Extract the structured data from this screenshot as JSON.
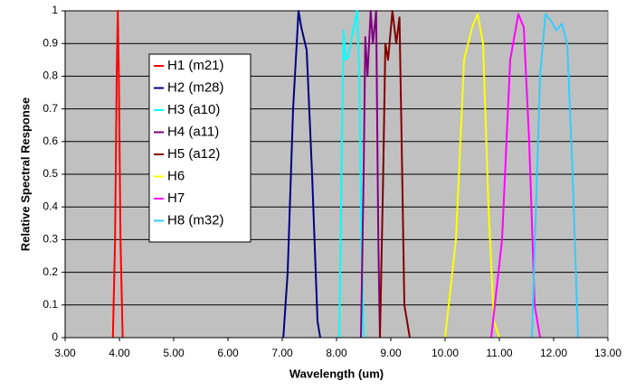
{
  "chart_data": {
    "type": "line",
    "xlabel": "Wavelength (um)",
    "ylabel": "Relative Spectral Response",
    "xlim": [
      3,
      13
    ],
    "ylim": [
      0,
      1
    ],
    "xticks": [
      {
        "value": 3,
        "label": "3.00"
      },
      {
        "value": 4,
        "label": "4.00"
      },
      {
        "value": 5,
        "label": "5.00"
      },
      {
        "value": 6,
        "label": "6.00"
      },
      {
        "value": 7,
        "label": "7.00"
      },
      {
        "value": 8,
        "label": "8.00"
      },
      {
        "value": 9,
        "label": "9.00"
      },
      {
        "value": 10,
        "label": "10.00"
      },
      {
        "value": 11,
        "label": "11.00"
      },
      {
        "value": 12,
        "label": "12.00"
      },
      {
        "value": 13,
        "label": "13.00"
      }
    ],
    "yticks": [
      0,
      0.1,
      0.2,
      0.3,
      0.4,
      0.5,
      0.6,
      0.7,
      0.8,
      0.9,
      1
    ],
    "grid": true,
    "background": "#c0c0c0",
    "series": [
      {
        "name": "H1 (m21)",
        "color": "#ff0000",
        "x": [
          3.88,
          3.92,
          3.95,
          3.97,
          3.99,
          4.02,
          4.06
        ],
        "values": [
          0,
          0.3,
          0.8,
          1,
          0.8,
          0.3,
          0
        ]
      },
      {
        "name": "H2 (m28)",
        "color": "#000080",
        "x": [
          7.02,
          7.1,
          7.2,
          7.3,
          7.35,
          7.45,
          7.55,
          7.65,
          7.7
        ],
        "values": [
          0,
          0.2,
          0.7,
          1,
          0.95,
          0.88,
          0.5,
          0.05,
          0
        ]
      },
      {
        "name": "H3 (a10)",
        "color": "#00ffff",
        "x": [
          8.05,
          8.1,
          8.13,
          8.17,
          8.22,
          8.28,
          8.33,
          8.38,
          8.42,
          8.46,
          8.5
        ],
        "values": [
          0,
          0.6,
          0.94,
          0.85,
          0.86,
          0.92,
          0.96,
          1,
          0.8,
          0.3,
          0
        ]
      },
      {
        "name": "H4 (a11)",
        "color": "#800080",
        "x": [
          8.45,
          8.5,
          8.53,
          8.57,
          8.63,
          8.67,
          8.73,
          8.77,
          8.8
        ],
        "values": [
          0,
          0.5,
          0.92,
          0.8,
          1,
          0.9,
          1,
          0.3,
          0
        ]
      },
      {
        "name": "H5 (a12)",
        "color": "#800000",
        "x": [
          8.8,
          8.86,
          8.9,
          8.95,
          9.03,
          9.1,
          9.16,
          9.2,
          9.25,
          9.35
        ],
        "values": [
          0,
          0.5,
          0.9,
          0.85,
          1,
          0.9,
          0.98,
          0.6,
          0.1,
          0
        ]
      },
      {
        "name": "H6",
        "color": "#ffff00",
        "x": [
          10.0,
          10.2,
          10.35,
          10.5,
          10.6,
          10.7,
          10.8,
          10.9,
          11.0
        ],
        "values": [
          0,
          0.3,
          0.85,
          0.95,
          0.99,
          0.9,
          0.4,
          0.05,
          0
        ]
      },
      {
        "name": "H7",
        "color": "#ff00ff",
        "x": [
          10.85,
          11.05,
          11.2,
          11.35,
          11.45,
          11.55,
          11.65,
          11.75
        ],
        "values": [
          0,
          0.3,
          0.85,
          0.99,
          0.95,
          0.6,
          0.1,
          0
        ]
      },
      {
        "name": "H8 (m32)",
        "color": "#33ccff",
        "x": [
          11.6,
          11.75,
          11.85,
          11.95,
          12.05,
          12.15,
          12.25,
          12.35,
          12.45
        ],
        "values": [
          0,
          0.8,
          0.99,
          0.97,
          0.94,
          0.96,
          0.9,
          0.5,
          0
        ]
      }
    ]
  }
}
